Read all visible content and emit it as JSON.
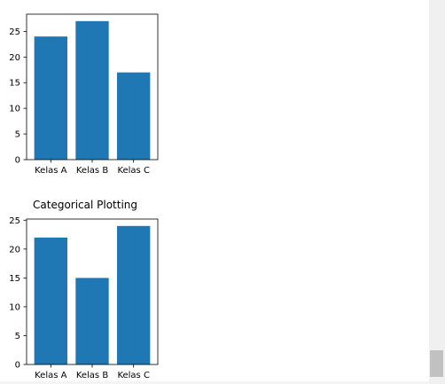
{
  "chart_data": [
    {
      "type": "bar",
      "title": "",
      "categories": [
        "Kelas A",
        "Kelas B",
        "Kelas C"
      ],
      "values": [
        24,
        27,
        17
      ],
      "ylim": [
        0,
        28.35
      ],
      "yticks": [
        0,
        5,
        10,
        15,
        20,
        25
      ],
      "color": "#1f77b4",
      "grid": false
    },
    {
      "type": "bar",
      "title": "Categorical Plotting",
      "categories": [
        "Kelas A",
        "Kelas B",
        "Kelas C"
      ],
      "values": [
        22,
        15,
        24
      ],
      "ylim": [
        0,
        25.2
      ],
      "yticks": [
        0,
        5,
        10,
        15,
        20,
        25
      ],
      "color": "#1f77b4",
      "grid": false
    }
  ]
}
